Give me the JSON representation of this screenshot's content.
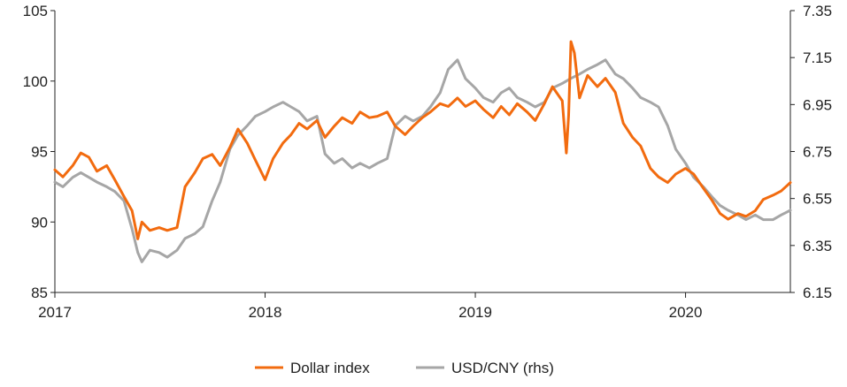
{
  "chart_data": {
    "type": "line",
    "x_ticks": [
      "2017",
      "2018",
      "2019",
      "2020"
    ],
    "x_range": [
      "2017-01-01",
      "2020-07-01"
    ],
    "y_left": {
      "range": [
        85,
        105
      ],
      "ticks": [
        "85",
        "90",
        "95",
        "100",
        "105"
      ]
    },
    "y_right": {
      "range": [
        6.15,
        7.35
      ],
      "ticks": [
        "6.15",
        "6.35",
        "6.55",
        "6.75",
        "6.95",
        "7.15",
        "7.35"
      ]
    },
    "grid": false,
    "legend_position": "bottom",
    "series": [
      {
        "name": "Dollar index",
        "axis": "left",
        "color": "#f26b0f",
        "points": [
          [
            "2017-01-01",
            93.7
          ],
          [
            "2017-01-15",
            93.2
          ],
          [
            "2017-02-01",
            94.0
          ],
          [
            "2017-02-15",
            94.9
          ],
          [
            "2017-03-01",
            94.6
          ],
          [
            "2017-03-15",
            93.6
          ],
          [
            "2017-04-01",
            94.0
          ],
          [
            "2017-04-15",
            93.0
          ],
          [
            "2017-05-01",
            91.8
          ],
          [
            "2017-05-15",
            90.8
          ],
          [
            "2017-05-25",
            88.8
          ],
          [
            "2017-06-01",
            90.0
          ],
          [
            "2017-06-15",
            89.4
          ],
          [
            "2017-07-01",
            89.6
          ],
          [
            "2017-07-15",
            89.4
          ],
          [
            "2017-08-01",
            89.6
          ],
          [
            "2017-08-15",
            92.5
          ],
          [
            "2017-09-01",
            93.5
          ],
          [
            "2017-09-15",
            94.5
          ],
          [
            "2017-10-01",
            94.8
          ],
          [
            "2017-10-15",
            94.0
          ],
          [
            "2017-11-01",
            95.3
          ],
          [
            "2017-11-15",
            96.6
          ],
          [
            "2017-12-01",
            95.6
          ],
          [
            "2017-12-15",
            94.4
          ],
          [
            "2018-01-01",
            93.0
          ],
          [
            "2018-01-15",
            94.5
          ],
          [
            "2018-02-01",
            95.6
          ],
          [
            "2018-02-15",
            96.2
          ],
          [
            "2018-03-01",
            97.0
          ],
          [
            "2018-03-15",
            96.6
          ],
          [
            "2018-04-01",
            97.2
          ],
          [
            "2018-04-15",
            96.0
          ],
          [
            "2018-05-01",
            96.8
          ],
          [
            "2018-05-15",
            97.4
          ],
          [
            "2018-06-01",
            97.0
          ],
          [
            "2018-06-15",
            97.8
          ],
          [
            "2018-07-01",
            97.4
          ],
          [
            "2018-07-15",
            97.5
          ],
          [
            "2018-08-01",
            97.8
          ],
          [
            "2018-08-15",
            96.8
          ],
          [
            "2018-09-01",
            96.2
          ],
          [
            "2018-09-15",
            96.8
          ],
          [
            "2018-10-01",
            97.4
          ],
          [
            "2018-10-15",
            97.8
          ],
          [
            "2018-11-01",
            98.4
          ],
          [
            "2018-11-15",
            98.2
          ],
          [
            "2018-12-01",
            98.8
          ],
          [
            "2018-12-15",
            98.2
          ],
          [
            "2019-01-01",
            98.6
          ],
          [
            "2019-01-15",
            98.0
          ],
          [
            "2019-02-01",
            97.4
          ],
          [
            "2019-02-15",
            98.2
          ],
          [
            "2019-03-01",
            97.6
          ],
          [
            "2019-03-15",
            98.4
          ],
          [
            "2019-04-01",
            97.8
          ],
          [
            "2019-04-15",
            97.2
          ],
          [
            "2019-05-01",
            98.4
          ],
          [
            "2019-05-15",
            99.6
          ],
          [
            "2019-06-01",
            98.6
          ],
          [
            "2019-06-08",
            94.9
          ],
          [
            "2019-06-12",
            97.6
          ],
          [
            "2019-06-16",
            102.8
          ],
          [
            "2019-06-22",
            102.0
          ],
          [
            "2019-07-01",
            98.8
          ],
          [
            "2019-07-15",
            100.4
          ],
          [
            "2019-08-01",
            99.6
          ],
          [
            "2019-08-15",
            100.2
          ],
          [
            "2019-09-01",
            99.2
          ],
          [
            "2019-09-15",
            97.0
          ],
          [
            "2019-10-01",
            96.0
          ],
          [
            "2019-10-15",
            95.4
          ],
          [
            "2019-11-01",
            93.8
          ],
          [
            "2019-11-15",
            93.2
          ],
          [
            "2019-12-01",
            92.8
          ],
          [
            "2019-12-15",
            93.4
          ],
          [
            "2020-01-01",
            93.8
          ],
          [
            "2020-01-15",
            93.4
          ],
          [
            "2020-02-01",
            92.4
          ],
          [
            "2020-02-15",
            91.6
          ],
          [
            "2020-03-01",
            90.6
          ],
          [
            "2020-03-15",
            90.2
          ],
          [
            "2020-04-01",
            90.6
          ],
          [
            "2020-04-15",
            90.4
          ],
          [
            "2020-05-01",
            90.8
          ],
          [
            "2020-05-15",
            91.6
          ],
          [
            "2020-06-01",
            91.9
          ],
          [
            "2020-06-15",
            92.2
          ],
          [
            "2020-07-01",
            92.8
          ]
        ]
      },
      {
        "name": "USD/CNY (rhs)",
        "axis": "right",
        "color": "#a6a6a6",
        "points": [
          [
            "2017-01-01",
            6.62
          ],
          [
            "2017-01-15",
            6.6
          ],
          [
            "2017-02-01",
            6.64
          ],
          [
            "2017-02-15",
            6.66
          ],
          [
            "2017-03-01",
            6.64
          ],
          [
            "2017-03-15",
            6.62
          ],
          [
            "2017-04-01",
            6.6
          ],
          [
            "2017-04-15",
            6.58
          ],
          [
            "2017-05-01",
            6.54
          ],
          [
            "2017-05-15",
            6.42
          ],
          [
            "2017-05-25",
            6.32
          ],
          [
            "2017-06-01",
            6.28
          ],
          [
            "2017-06-15",
            6.33
          ],
          [
            "2017-07-01",
            6.32
          ],
          [
            "2017-07-15",
            6.3
          ],
          [
            "2017-08-01",
            6.33
          ],
          [
            "2017-08-15",
            6.38
          ],
          [
            "2017-09-01",
            6.4
          ],
          [
            "2017-09-15",
            6.43
          ],
          [
            "2017-10-01",
            6.54
          ],
          [
            "2017-10-15",
            6.62
          ],
          [
            "2017-11-01",
            6.76
          ],
          [
            "2017-11-15",
            6.82
          ],
          [
            "2017-12-01",
            6.86
          ],
          [
            "2017-12-15",
            6.9
          ],
          [
            "2018-01-01",
            6.92
          ],
          [
            "2018-01-15",
            6.94
          ],
          [
            "2018-02-01",
            6.96
          ],
          [
            "2018-02-15",
            6.94
          ],
          [
            "2018-03-01",
            6.92
          ],
          [
            "2018-03-15",
            6.88
          ],
          [
            "2018-04-01",
            6.9
          ],
          [
            "2018-04-15",
            6.74
          ],
          [
            "2018-05-01",
            6.7
          ],
          [
            "2018-05-15",
            6.72
          ],
          [
            "2018-06-01",
            6.68
          ],
          [
            "2018-06-15",
            6.7
          ],
          [
            "2018-07-01",
            6.68
          ],
          [
            "2018-07-15",
            6.7
          ],
          [
            "2018-08-01",
            6.72
          ],
          [
            "2018-08-15",
            6.86
          ],
          [
            "2018-09-01",
            6.9
          ],
          [
            "2018-09-15",
            6.88
          ],
          [
            "2018-10-01",
            6.9
          ],
          [
            "2018-10-15",
            6.94
          ],
          [
            "2018-11-01",
            7.0
          ],
          [
            "2018-11-15",
            7.1
          ],
          [
            "2018-12-01",
            7.14
          ],
          [
            "2018-12-15",
            7.06
          ],
          [
            "2019-01-01",
            7.02
          ],
          [
            "2019-01-15",
            6.98
          ],
          [
            "2019-02-01",
            6.96
          ],
          [
            "2019-02-15",
            7.0
          ],
          [
            "2019-03-01",
            7.02
          ],
          [
            "2019-03-15",
            6.98
          ],
          [
            "2019-04-01",
            6.96
          ],
          [
            "2019-04-15",
            6.94
          ],
          [
            "2019-05-01",
            6.96
          ],
          [
            "2019-05-15",
            7.02
          ],
          [
            "2019-06-01",
            7.04
          ],
          [
            "2019-06-15",
            7.06
          ],
          [
            "2019-07-01",
            7.08
          ],
          [
            "2019-07-15",
            7.1
          ],
          [
            "2019-08-01",
            7.12
          ],
          [
            "2019-08-15",
            7.14
          ],
          [
            "2019-09-01",
            7.08
          ],
          [
            "2019-09-15",
            7.06
          ],
          [
            "2019-10-01",
            7.02
          ],
          [
            "2019-10-15",
            6.98
          ],
          [
            "2019-11-01",
            6.96
          ],
          [
            "2019-11-15",
            6.94
          ],
          [
            "2019-12-01",
            6.86
          ],
          [
            "2019-12-15",
            6.76
          ],
          [
            "2020-01-01",
            6.7
          ],
          [
            "2020-01-15",
            6.64
          ],
          [
            "2020-02-01",
            6.6
          ],
          [
            "2020-02-15",
            6.56
          ],
          [
            "2020-03-01",
            6.52
          ],
          [
            "2020-03-15",
            6.5
          ],
          [
            "2020-04-01",
            6.48
          ],
          [
            "2020-04-15",
            6.46
          ],
          [
            "2020-05-01",
            6.48
          ],
          [
            "2020-05-15",
            6.46
          ],
          [
            "2020-06-01",
            6.46
          ],
          [
            "2020-06-15",
            6.48
          ],
          [
            "2020-07-01",
            6.5
          ]
        ]
      }
    ]
  }
}
